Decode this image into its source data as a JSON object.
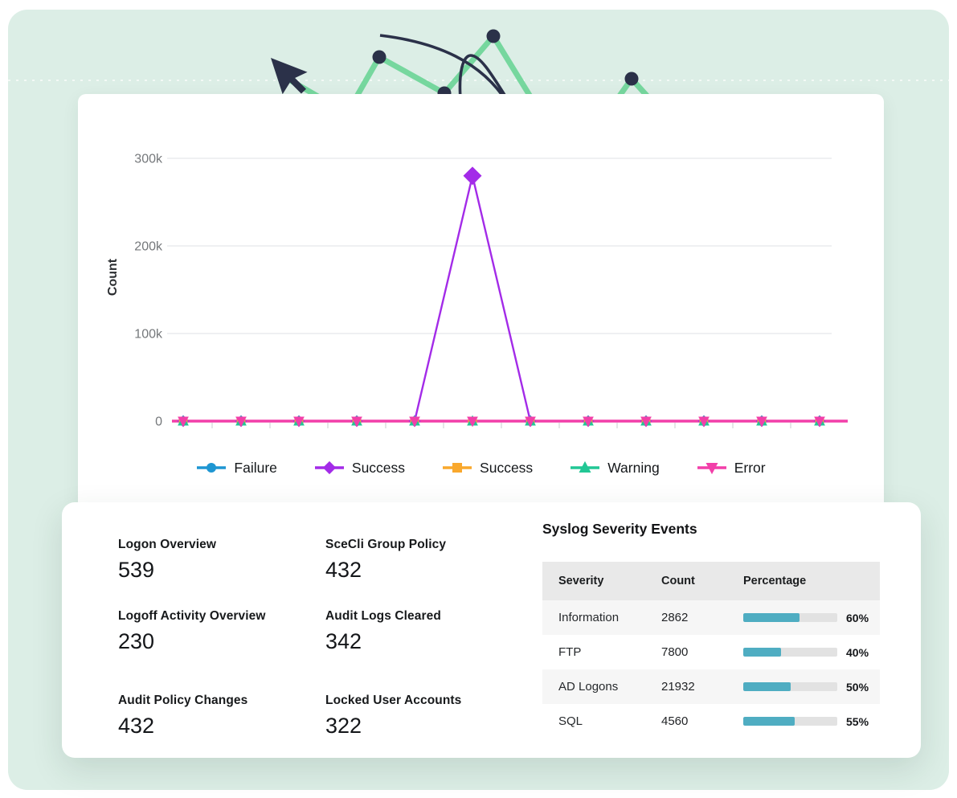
{
  "colors": {
    "mint_background": "#dceee6",
    "card_background": "#ffffff",
    "deco_green": "#76d79e",
    "deco_navy": "#2b3149",
    "failure_blue": "#1e96d2",
    "success_purple": "#a32be8",
    "success_orange": "#f9a82d",
    "warning_teal": "#22c795",
    "error_pink": "#f23fa9",
    "bar_fill": "#4fadc2",
    "bar_track": "#e2e2e2",
    "table_header_bg": "#e9e9e9",
    "grid_line": "#e5e7e9"
  },
  "chart_data": {
    "type": "line",
    "x": [
      1,
      2,
      3,
      4,
      5,
      6,
      7,
      8,
      9,
      10,
      11,
      12
    ],
    "x_tick_labels_visible": false,
    "series": [
      {
        "name": "Failure",
        "color": "#1e96d2",
        "marker": "circle",
        "values": [
          0,
          0,
          0,
          0,
          0,
          0,
          0,
          0,
          0,
          0,
          0,
          0
        ]
      },
      {
        "name": "Success",
        "color": "#a32be8",
        "marker": "diamond",
        "values": [
          0,
          0,
          0,
          0,
          0,
          280000,
          0,
          0,
          0,
          0,
          0,
          0
        ]
      },
      {
        "name": "Success",
        "color": "#f9a82d",
        "marker": "square",
        "values": [
          0,
          0,
          0,
          0,
          0,
          0,
          0,
          0,
          0,
          0,
          0,
          0
        ]
      },
      {
        "name": "Warning",
        "color": "#22c795",
        "marker": "triangle-up",
        "values": [
          0,
          0,
          0,
          0,
          0,
          0,
          0,
          0,
          0,
          0,
          0,
          0
        ]
      },
      {
        "name": "Error",
        "color": "#f23fa9",
        "marker": "triangle-down",
        "values": [
          0,
          0,
          0,
          0,
          0,
          0,
          0,
          0,
          0,
          0,
          0,
          0
        ]
      }
    ],
    "title": "",
    "xlabel": "",
    "ylabel": "Count",
    "ylim": [
      0,
      300000
    ],
    "yticks": [
      0,
      100000,
      200000,
      300000
    ],
    "ytick_labels": [
      "0",
      "100k",
      "200k",
      "300k"
    ],
    "grid": true,
    "legend_position": "bottom"
  },
  "stats": [
    {
      "label": "Logon Overview",
      "value": "539"
    },
    {
      "label": "SceCli Group Policy",
      "value": "432"
    },
    {
      "label": "Logoff Activity Overview",
      "value": "230"
    },
    {
      "label": "Audit Logs Cleared",
      "value": "342"
    },
    {
      "label": "Audit Policy Changes",
      "value": "432"
    },
    {
      "label": "Locked User Accounts",
      "value": "322"
    }
  ],
  "severity_table": {
    "title": "Syslog Severity Events",
    "columns": [
      "Severity",
      "Count",
      "Percentage"
    ],
    "rows": [
      {
        "severity": "Information",
        "count": "2862",
        "percentage": 60,
        "percentage_label": "60%"
      },
      {
        "severity": "FTP",
        "count": "7800",
        "percentage": 40,
        "percentage_label": "40%"
      },
      {
        "severity": "AD Logons",
        "count": "21932",
        "percentage": 50,
        "percentage_label": "50%"
      },
      {
        "severity": "SQL",
        "count": "4560",
        "percentage": 55,
        "percentage_label": "55%"
      }
    ]
  }
}
